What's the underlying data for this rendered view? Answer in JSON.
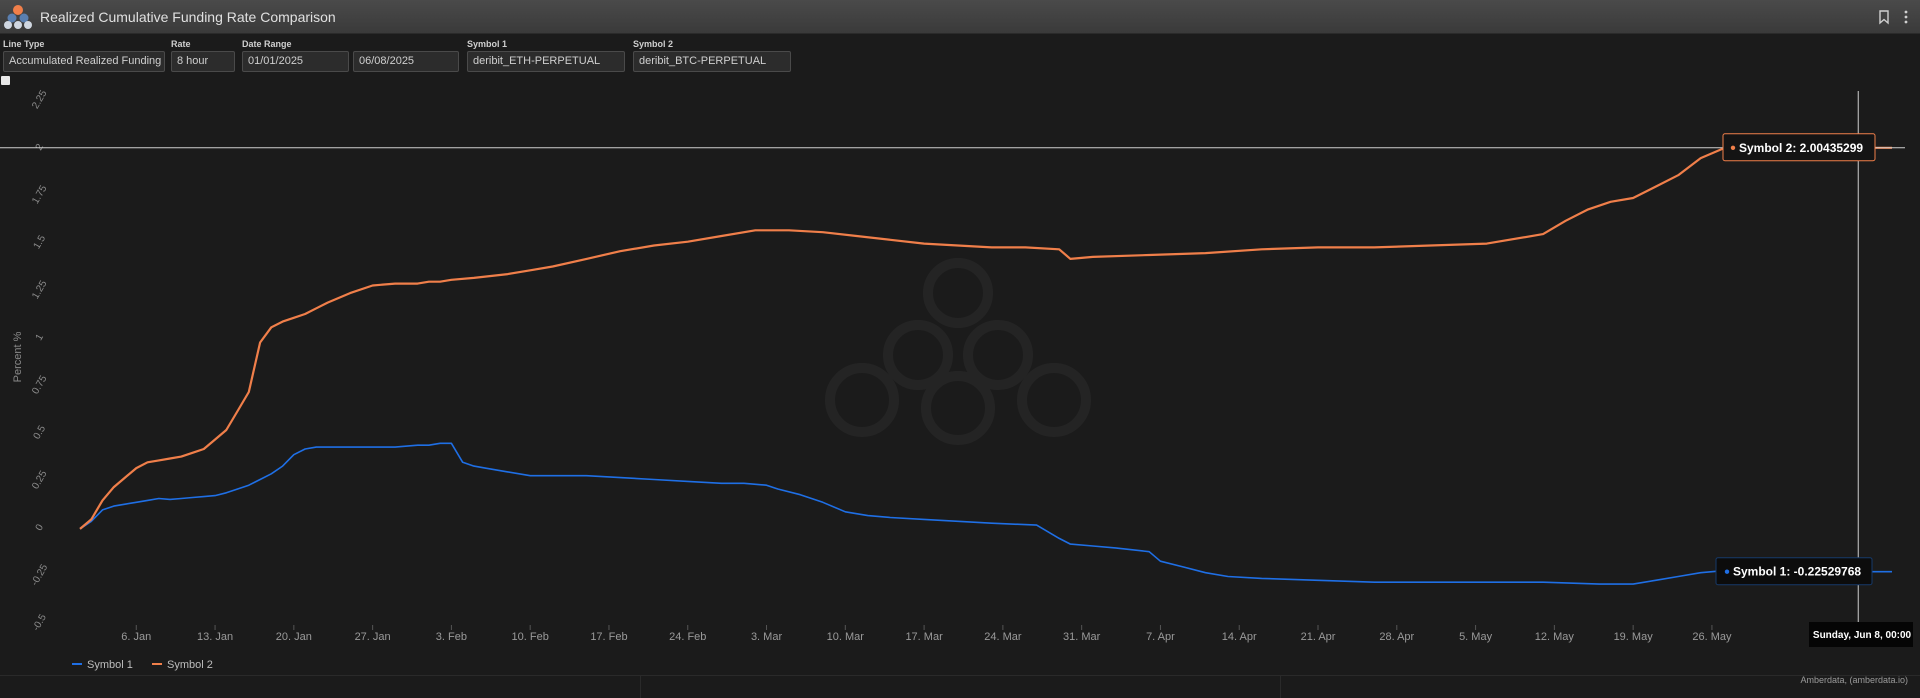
{
  "window": {
    "title": "Realized Cumulative Funding Rate Comparison"
  },
  "controls": {
    "line_type": {
      "label": "Line Type",
      "value": "Accumulated Realized Funding"
    },
    "rate": {
      "label": "Rate",
      "value": "8 hour"
    },
    "date_range": {
      "label": "Date Range",
      "start": "01/01/2025",
      "end": "06/08/2025"
    },
    "symbol1": {
      "label": "Symbol 1",
      "value": "deribit_ETH-PERPETUAL"
    },
    "symbol2": {
      "label": "Symbol 2",
      "value": "deribit_BTC-PERPETUAL"
    }
  },
  "colors": {
    "symbol1": "#1f6fe5",
    "symbol2": "#f07f4a",
    "background": "#1b1b1b"
  },
  "chart_data": {
    "type": "line",
    "title": "",
    "xlabel": "",
    "ylabel": "Percent %",
    "ylim": [
      -0.5,
      2.25
    ],
    "xlim_days": [
      0,
      161
    ],
    "yticks": [
      "-0.5",
      "-0.25",
      "0",
      "0.25",
      "0.5",
      "0.75",
      "1",
      "1.25",
      "1.5",
      "1.75",
      "2",
      "2.25"
    ],
    "ytick_values": [
      -0.5,
      -0.25,
      0,
      0.25,
      0.5,
      0.75,
      1,
      1.25,
      1.5,
      1.75,
      2,
      2.25
    ],
    "xticks": [
      "6. Jan",
      "13. Jan",
      "20. Jan",
      "27. Jan",
      "3. Feb",
      "10. Feb",
      "17. Feb",
      "24. Feb",
      "3. Mar",
      "10. Mar",
      "17. Mar",
      "24. Mar",
      "31. Mar",
      "7. Apr",
      "14. Apr",
      "21. Apr",
      "28. Apr",
      "5. May",
      "12. May",
      "19. May",
      "26. May"
    ],
    "xtick_days": [
      5,
      12,
      19,
      26,
      33,
      40,
      47,
      54,
      61,
      68,
      75,
      82,
      89,
      96,
      103,
      110,
      117,
      124,
      131,
      138,
      145
    ],
    "series": [
      {
        "name": "Symbol 1",
        "x": [
          0,
          1,
          2,
          3,
          4,
          5,
          6,
          7,
          8,
          9,
          10,
          11,
          12,
          13,
          14,
          15,
          16,
          17,
          18,
          19,
          20,
          21,
          22,
          24,
          26,
          28,
          30,
          31,
          32,
          33,
          34,
          35,
          36,
          38,
          40,
          42,
          45,
          48,
          51,
          54,
          57,
          59,
          61,
          62,
          64,
          66,
          68,
          70,
          72,
          75,
          78,
          81,
          85,
          87,
          88,
          90,
          92,
          95,
          96,
          98,
          100,
          102,
          105,
          110,
          115,
          120,
          125,
          130,
          135,
          138,
          140,
          142,
          144,
          146,
          148,
          150,
          152,
          154,
          156,
          158,
          161
        ],
        "y": [
          0,
          0.04,
          0.1,
          0.12,
          0.13,
          0.14,
          0.15,
          0.16,
          0.155,
          0.16,
          0.165,
          0.17,
          0.175,
          0.19,
          0.21,
          0.23,
          0.26,
          0.29,
          0.33,
          0.39,
          0.42,
          0.43,
          0.43,
          0.43,
          0.43,
          0.43,
          0.44,
          0.44,
          0.45,
          0.45,
          0.35,
          0.33,
          0.32,
          0.3,
          0.28,
          0.28,
          0.28,
          0.27,
          0.26,
          0.25,
          0.24,
          0.24,
          0.23,
          0.21,
          0.18,
          0.14,
          0.09,
          0.07,
          0.06,
          0.05,
          0.04,
          0.03,
          0.02,
          -0.05,
          -0.08,
          -0.09,
          -0.1,
          -0.12,
          -0.17,
          -0.2,
          -0.23,
          -0.25,
          -0.26,
          -0.27,
          -0.28,
          -0.28,
          -0.28,
          -0.28,
          -0.29,
          -0.29,
          -0.27,
          -0.25,
          -0.23,
          -0.22,
          -0.225,
          -0.225,
          -0.225,
          -0.225,
          -0.225,
          -0.225,
          -0.225
        ]
      },
      {
        "name": "Symbol 2",
        "x": [
          0,
          1,
          2,
          3,
          4,
          5,
          6,
          7,
          8,
          9,
          10,
          11,
          12,
          13,
          14,
          15,
          16,
          17,
          18,
          19,
          20,
          21,
          22,
          24,
          26,
          28,
          30,
          31,
          32,
          33,
          35,
          38,
          40,
          42,
          45,
          48,
          51,
          54,
          57,
          60,
          63,
          66,
          69,
          72,
          75,
          78,
          81,
          84,
          87,
          88,
          90,
          95,
          100,
          105,
          110,
          115,
          120,
          125,
          130,
          132,
          134,
          136,
          138,
          140,
          142,
          144,
          146,
          148,
          150,
          152,
          154,
          156,
          158,
          161
        ],
        "y": [
          0,
          0.05,
          0.15,
          0.22,
          0.27,
          0.32,
          0.35,
          0.36,
          0.37,
          0.38,
          0.4,
          0.42,
          0.47,
          0.52,
          0.62,
          0.72,
          0.98,
          1.06,
          1.09,
          1.11,
          1.13,
          1.16,
          1.19,
          1.24,
          1.28,
          1.29,
          1.29,
          1.3,
          1.3,
          1.31,
          1.32,
          1.34,
          1.36,
          1.38,
          1.42,
          1.46,
          1.49,
          1.51,
          1.54,
          1.57,
          1.57,
          1.56,
          1.54,
          1.52,
          1.5,
          1.49,
          1.48,
          1.48,
          1.47,
          1.42,
          1.43,
          1.44,
          1.45,
          1.47,
          1.48,
          1.48,
          1.49,
          1.5,
          1.55,
          1.62,
          1.68,
          1.72,
          1.74,
          1.8,
          1.86,
          1.95,
          2.0,
          2.004,
          2.004,
          2.004,
          2.004,
          2.004,
          2.004,
          2.004
        ]
      }
    ],
    "tooltip_symbol2": "Symbol 2: 2.00435299",
    "tooltip_symbol1": "Symbol 1: -0.22529768",
    "crosshair_label": "Sunday, Jun 8, 00:00",
    "crosshair_day": 158,
    "crosshair_value_symbol2": 2.004,
    "crosshair_value_symbol1": -0.225,
    "legend": [
      "Symbol 1",
      "Symbol 2"
    ],
    "legend_position": "bottom-left",
    "credit": "Amberdata, (amberdata.io)"
  }
}
